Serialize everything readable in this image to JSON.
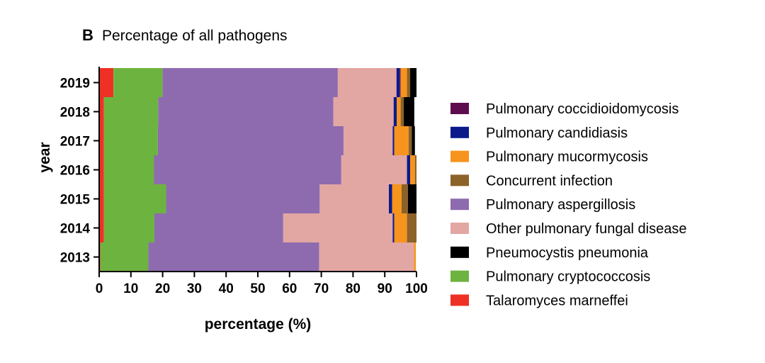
{
  "panel": "B",
  "chart_data": {
    "type": "bar",
    "orientation": "horizontal",
    "stacked": true,
    "title": "Percentage of all pathogens",
    "xlabel": "percentage (%)",
    "ylabel": "year",
    "xlim": [
      0,
      100
    ],
    "xticks": [
      0,
      10,
      20,
      30,
      40,
      50,
      60,
      70,
      80,
      90,
      100
    ],
    "categories": [
      "2013",
      "2014",
      "2015",
      "2016",
      "2017",
      "2018",
      "2019"
    ],
    "legend_position": "right",
    "series": [
      {
        "name": "Talaromyces marneffei",
        "color": "#EE3124",
        "values": [
          0.4,
          1.5,
          1.5,
          1.5,
          1.5,
          1.5,
          4.5
        ]
      },
      {
        "name": "Pulmonary cryptococcosis",
        "color": "#6DB33F",
        "values": [
          15.1,
          15.9,
          19.6,
          15.8,
          17.0,
          17.1,
          15.5
        ]
      },
      {
        "name": "Pulmonary aspergillosis",
        "color": "#8E6BAF",
        "values": [
          53.8,
          40.6,
          48.4,
          59.0,
          58.5,
          55.2,
          55.2
        ]
      },
      {
        "name": "Other pulmonary fungal disease",
        "color": "#E2A6A3",
        "values": [
          29.9,
          34.5,
          21.8,
          20.7,
          15.5,
          19.0,
          18.5
        ]
      },
      {
        "name": "Pulmonary candidiasis",
        "color": "#0A1A8A",
        "values": [
          0.0,
          0.5,
          1.0,
          1.0,
          0.5,
          1.0,
          1.0
        ]
      },
      {
        "name": "Pulmonary coccidioidomycosis",
        "color": "#5E0E4F",
        "values": [
          0.0,
          0.0,
          0.0,
          0.0,
          0.0,
          0.0,
          0.3
        ]
      },
      {
        "name": "Pulmonary mucormycosis",
        "color": "#F7941D",
        "values": [
          0.6,
          4.0,
          3.0,
          1.5,
          4.5,
          1.2,
          2.0
        ]
      },
      {
        "name": "Concurrent infection",
        "color": "#8C6229",
        "values": [
          0.0,
          3.0,
          2.0,
          0.5,
          1.0,
          1.0,
          1.0
        ]
      },
      {
        "name": "Pneumocystis pneumonia",
        "color": "#000000",
        "values": [
          0.0,
          0.0,
          2.7,
          0.0,
          1.0,
          3.3,
          2.0
        ]
      }
    ],
    "legend": [
      {
        "name": "Pulmonary coccidioidomycosis",
        "color": "#5E0E4F"
      },
      {
        "name": "Pulmonary candidiasis",
        "color": "#0A1A8A"
      },
      {
        "name": "Pulmonary mucormycosis",
        "color": "#F7941D"
      },
      {
        "name": "Concurrent infection",
        "color": "#8C6229"
      },
      {
        "name": "Pulmonary aspergillosis",
        "color": "#8E6BAF"
      },
      {
        "name": "Other pulmonary fungal disease",
        "color": "#E2A6A3"
      },
      {
        "name": "Pneumocystis pneumonia",
        "color": "#000000"
      },
      {
        "name": "Pulmonary cryptococcosis",
        "color": "#6DB33F"
      },
      {
        "name": "Talaromyces marneffei",
        "color": "#EE3124"
      }
    ]
  }
}
